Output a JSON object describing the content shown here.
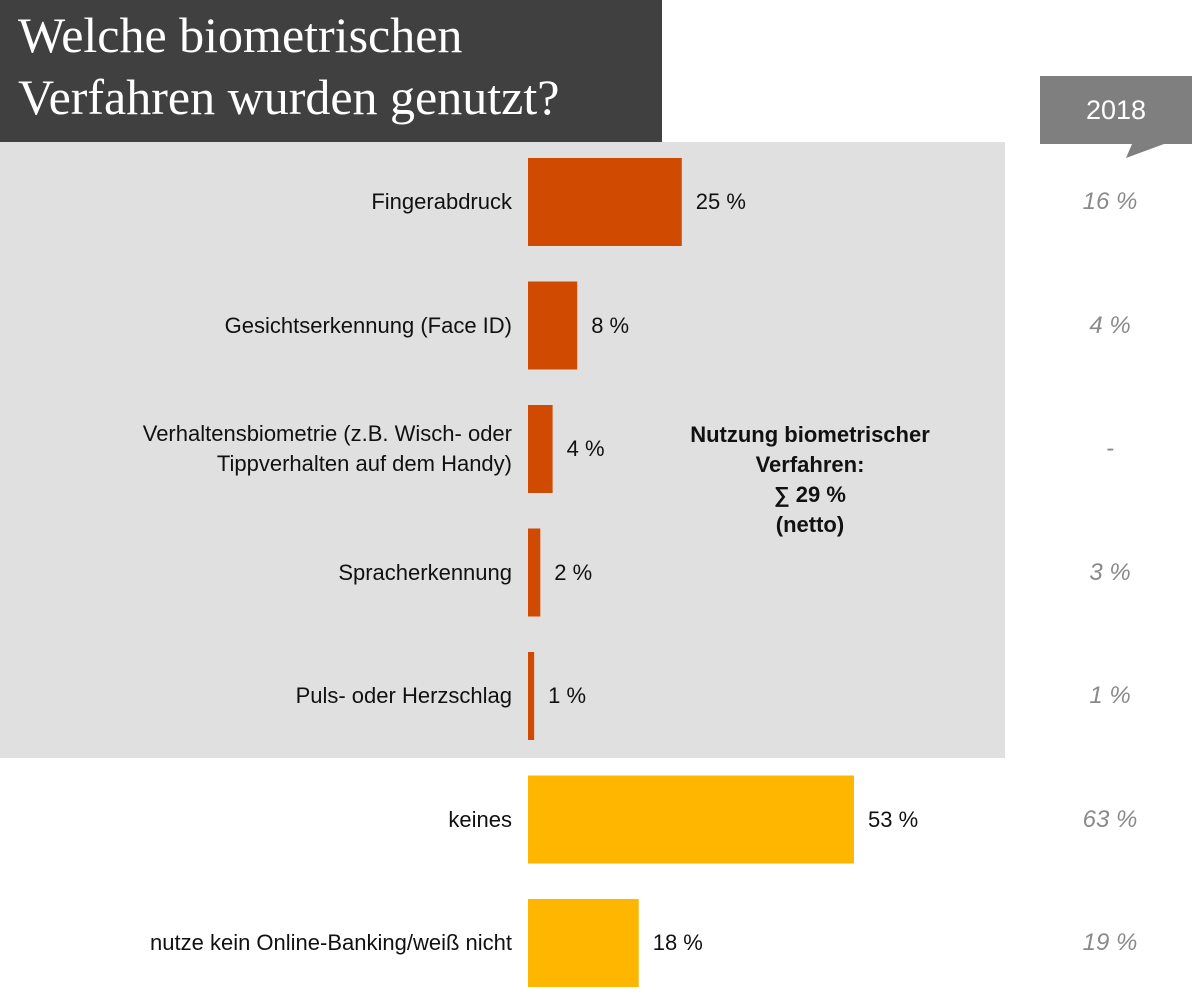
{
  "title": {
    "line1": "Welche biometrischen",
    "line2": "Verfahren wurden genutzt?"
  },
  "comparison_year": "2018",
  "colors": {
    "biometric_bar": "#d04a02",
    "other_bar": "#ffb600",
    "panel": "#e0e0e0",
    "title_bg": "#404040",
    "year_tag": "#7f7f7f",
    "comparison_text": "#8a8a8a"
  },
  "note": {
    "line1": "Nutzung biometrischer",
    "line2": "Verfahren:",
    "line3": "∑ 29 %",
    "line4": "(netto)"
  },
  "chart_data": {
    "type": "bar",
    "orientation": "horizontal",
    "xlim": [
      0,
      53
    ],
    "categories": [
      "Fingerabdruck",
      "Gesichtserkennung (Face ID)",
      "Verhaltensbiometrie (z.B. Wisch- oder Tippverhalten auf dem Handy)",
      "Spracherkennung",
      "Puls- oder Herzschlag",
      "keines",
      "nutze kein Online-Banking/weiß nicht"
    ],
    "category_lines": [
      [
        "Fingerabdruck"
      ],
      [
        "Gesichtserkennung (Face ID)"
      ],
      [
        "Verhaltensbiometrie (z.B. Wisch- oder",
        "Tippverhalten auf dem Handy)"
      ],
      [
        "Spracherkennung"
      ],
      [
        "Puls- oder Herzschlag"
      ],
      [
        "keines"
      ],
      [
        "nutze kein Online-Banking/weiß nicht"
      ]
    ],
    "values": [
      25,
      8,
      4,
      2,
      1,
      53,
      18
    ],
    "value_labels": [
      "25 %",
      "8 %",
      "4 %",
      "2 %",
      "1 %",
      "53 %",
      "18 %"
    ],
    "groups": [
      "biometric",
      "biometric",
      "biometric",
      "biometric",
      "biometric",
      "other",
      "other"
    ],
    "comparison_2018": [
      "16 %",
      "4 %",
      "-",
      "3 %",
      "1 %",
      "63 %",
      "19 %"
    ]
  }
}
